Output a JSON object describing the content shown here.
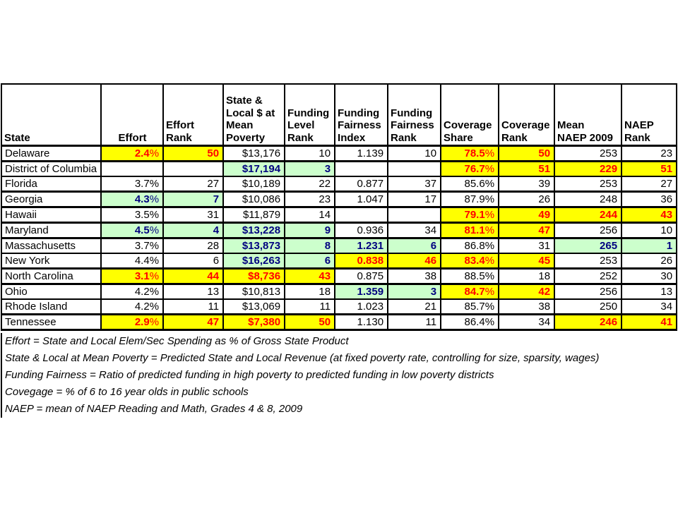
{
  "chart_data": {
    "type": "table",
    "columns": [
      "State",
      "Effort",
      "Effort Rank",
      "State & Local $ at Mean Poverty",
      "Funding Level Rank",
      "Funding Fairness Index",
      "Funding Fairness Rank",
      "Coverage Share",
      "Coverage Rank",
      "Mean NAEP 2009",
      "NAEP Rank"
    ],
    "header_display": [
      "State",
      "Effort",
      "Effort Rank",
      "State &\nLocal $ at\nMean\nPoverty",
      "Funding\nLevel\nRank",
      "Funding\nFairness\nIndex",
      "Funding\nFairness\nRank",
      "Coverage\nShare",
      "Coverage\nRank",
      "Mean\nNAEP 2009",
      "NAEP\nRank"
    ],
    "rows": [
      {
        "state": "Delaware",
        "emphasized": true,
        "values": [
          "2.4%",
          "50",
          "$13,176",
          "10",
          "1.139",
          "10",
          "78.5%",
          "50",
          "253",
          "23"
        ],
        "highlights": [
          "yellow",
          "yellow",
          "",
          "",
          "",
          "",
          "yellow",
          "yellow",
          "",
          ""
        ]
      },
      {
        "state": "District of Columbia",
        "emphasized": false,
        "values": [
          "",
          "",
          "$17,194",
          "3",
          "",
          "",
          "76.7%",
          "51",
          "229",
          "51"
        ],
        "highlights": [
          "",
          "",
          "green",
          "green",
          "",
          "",
          "yellow",
          "yellow",
          "yellow",
          "yellow"
        ]
      },
      {
        "state": "Florida",
        "emphasized": false,
        "values": [
          "3.7%",
          "27",
          "$10,189",
          "22",
          "0.877",
          "37",
          "85.6%",
          "39",
          "253",
          "27"
        ],
        "highlights": [
          "",
          "",
          "",
          "",
          "",
          "",
          "",
          "",
          "",
          ""
        ]
      },
      {
        "state": "Georgia",
        "emphasized": true,
        "values": [
          "4.3%",
          "7",
          "$10,086",
          "23",
          "1.047",
          "17",
          "87.9%",
          "26",
          "248",
          "36"
        ],
        "highlights": [
          "green",
          "green",
          "",
          "",
          "",
          "",
          "",
          "",
          "",
          ""
        ]
      },
      {
        "state": "Hawaii",
        "emphasized": true,
        "values": [
          "3.5%",
          "31",
          "$11,879",
          "14",
          "",
          "",
          "79.1%",
          "49",
          "244",
          "43"
        ],
        "highlights": [
          "",
          "",
          "",
          "",
          "",
          "",
          "yellow",
          "yellow",
          "yellow",
          "yellow"
        ]
      },
      {
        "state": "Maryland",
        "emphasized": true,
        "values": [
          "4.5%",
          "4",
          "$13,228",
          "9",
          "0.936",
          "34",
          "81.1%",
          "47",
          "256",
          "10"
        ],
        "highlights": [
          "green",
          "green",
          "green",
          "green",
          "",
          "",
          "yellow",
          "yellow",
          "",
          ""
        ]
      },
      {
        "state": "Massachusetts",
        "emphasized": false,
        "values": [
          "3.7%",
          "28",
          "$13,873",
          "8",
          "1.231",
          "6",
          "86.8%",
          "31",
          "265",
          "1"
        ],
        "highlights": [
          "",
          "",
          "green",
          "green",
          "green",
          "green",
          "",
          "",
          "green",
          "green"
        ]
      },
      {
        "state": "New York",
        "emphasized": false,
        "values": [
          "4.4%",
          "6",
          "$16,263",
          "6",
          "0.838",
          "46",
          "83.4%",
          "45",
          "253",
          "26"
        ],
        "highlights": [
          "",
          "",
          "green",
          "green",
          "yellow",
          "yellow",
          "yellow",
          "yellow",
          "",
          ""
        ]
      },
      {
        "state": "North Carolina",
        "emphasized": true,
        "values": [
          "3.1%",
          "44",
          "$8,736",
          "43",
          "0.875",
          "38",
          "88.5%",
          "18",
          "252",
          "30"
        ],
        "highlights": [
          "yellow",
          "yellow",
          "yellow",
          "yellow",
          "",
          "",
          "",
          "",
          "",
          ""
        ]
      },
      {
        "state": "Ohio",
        "emphasized": false,
        "values": [
          "4.2%",
          "13",
          "$10,813",
          "18",
          "1.359",
          "3",
          "84.7%",
          "42",
          "256",
          "13"
        ],
        "highlights": [
          "",
          "",
          "",
          "",
          "green",
          "green",
          "yellow",
          "yellow",
          "",
          ""
        ]
      },
      {
        "state": "Rhode Island",
        "emphasized": false,
        "values": [
          "4.2%",
          "11",
          "$13,069",
          "11",
          "1.023",
          "21",
          "85.7%",
          "38",
          "250",
          "34"
        ],
        "highlights": [
          "",
          "",
          "",
          "",
          "",
          "",
          "",
          "",
          "",
          ""
        ]
      },
      {
        "state": "Tennessee",
        "emphasized": true,
        "values": [
          "2.9%",
          "47",
          "$7,380",
          "50",
          "1.130",
          "11",
          "86.4%",
          "34",
          "246",
          "41"
        ],
        "highlights": [
          "yellow",
          "yellow",
          "yellow",
          "yellow",
          "",
          "",
          "",
          "",
          "yellow",
          "yellow"
        ]
      }
    ]
  },
  "footnotes": [
    "Effort = State and Local Elem/Sec Spending as % of Gross State Product",
    "State & Local at Mean Poverty = Predicted State and Local Revenue (at fixed poverty rate, controlling for size, sparsity, wages)",
    "Funding Fairness = Ratio of predicted funding in high poverty to predicted funding in low poverty districts",
    "Covegage = % of 6 to 16 year olds in public schools",
    "NAEP = mean of NAEP Reading and Math, Grades 4 & 8, 2009"
  ],
  "colors": {
    "highlight_yellow": "#FFFF00",
    "highlight_green": "#CCFFCC",
    "flag_red_text": "#FF0000",
    "flag_navy_text": "#000080",
    "border": "#000000",
    "background": "#FFFFFF"
  }
}
